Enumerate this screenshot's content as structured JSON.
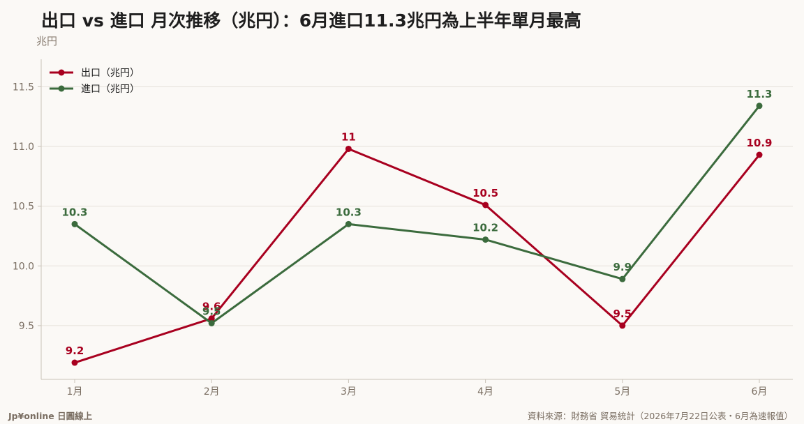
{
  "chart_data": {
    "type": "line",
    "title": "出口 vs 進口 月次推移（兆円）：6月進口11.3兆円為上半年單月最高",
    "ylabel": "兆円",
    "xlabel": "",
    "categories": [
      "1月",
      "2月",
      "3月",
      "4月",
      "5月",
      "6月"
    ],
    "yticks": [
      9.5,
      10.0,
      10.5,
      11.0,
      11.5
    ],
    "ytick_labels": [
      "9.5",
      "10.0",
      "10.5",
      "11.0",
      "11.5"
    ],
    "ylim": [
      9.05,
      11.73
    ],
    "grid": true,
    "legend_position": "top-left",
    "series": [
      {
        "name": "出口（兆円）",
        "color": "#a8001f",
        "values": [
          9.19,
          9.56,
          10.98,
          10.51,
          9.5,
          10.93
        ],
        "labels": [
          "9.2",
          "9.6",
          "11",
          "10.5",
          "9.5",
          "10.9"
        ]
      },
      {
        "name": "進口（兆円）",
        "color": "#3b6b3d",
        "values": [
          10.35,
          9.52,
          10.35,
          10.22,
          9.89,
          11.34
        ],
        "labels": [
          "10.3",
          "9.5",
          "10.3",
          "10.2",
          "9.9",
          "11.3"
        ]
      }
    ]
  },
  "footer": {
    "brand": "Jp¥online 日圓線上",
    "source": "資料來源：財務省 貿易統計（2026年7月22日公表・6月為速報值）"
  }
}
